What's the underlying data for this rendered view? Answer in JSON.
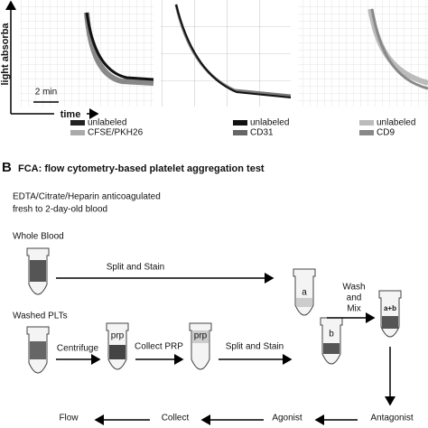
{
  "panel_a": {
    "y_label": "light absorba",
    "scale_label": "2 min",
    "x_label": "time",
    "legends": [
      {
        "first": "unlabeled",
        "second": "CFSE/PKH26"
      },
      {
        "first": "unlabeled",
        "second": "CD31"
      },
      {
        "first": "unlabeled",
        "second": "CD9"
      }
    ]
  },
  "panel_b": {
    "letter": "B",
    "title": "FCA: flow cytometry-based platelet aggregation test",
    "note_line1": "EDTA/Citrate/Heparin anticoagulated",
    "note_line2": "fresh to 2-day-old blood",
    "whole_blood": "Whole Blood",
    "split_stain_top": "Split and Stain",
    "washed_plts": "Washed PLTs",
    "centrifuge": "Centrifuge",
    "tube_prp1": "prp",
    "collect_prp": "Collect PRP",
    "tube_prp2": "prp",
    "split_stain_bottom": "Split and Stain",
    "tube_a": "a",
    "tube_b": "b",
    "wash": "Wash",
    "and": "and",
    "mix": "Mix",
    "tube_ab": "a+b",
    "antagonist": "Antagonist",
    "agonist": "Agonist",
    "collect": "Collect",
    "flow": "Flow"
  }
}
